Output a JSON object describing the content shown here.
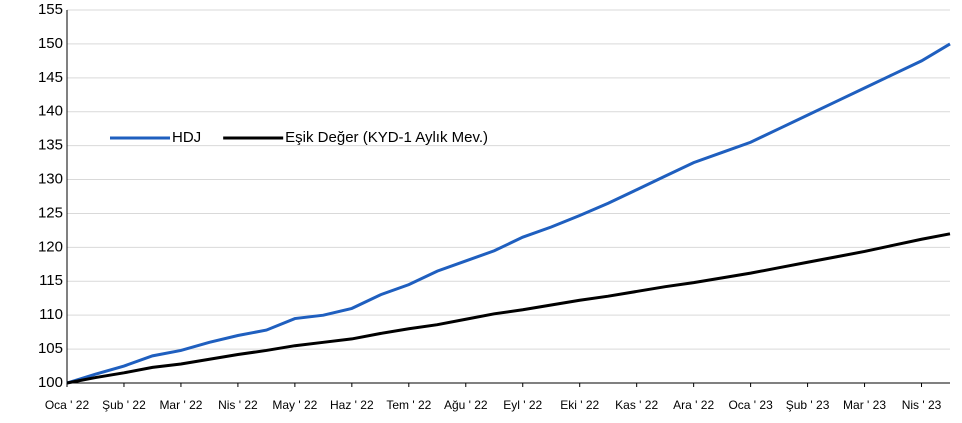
{
  "chart_data": {
    "type": "line",
    "categories": [
      "Oca ' 22",
      null,
      "Şub ' 22",
      null,
      "Mar ' 22",
      null,
      "Nis ' 22",
      null,
      "May ' 22",
      null,
      "Haz ' 22",
      null,
      "Tem ' 22",
      null,
      "Ağu ' 22",
      null,
      "Eyl ' 22",
      null,
      "Eki ' 22",
      null,
      "Kas ' 22",
      null,
      "Ara ' 22",
      null,
      "Oca ' 23",
      null,
      "Şub ' 23",
      null,
      "Mar ' 23",
      null,
      "Nis ' 23",
      null
    ],
    "series": [
      {
        "name": "HDJ",
        "color": "#1f5fbf",
        "values": [
          100,
          101.3,
          102.5,
          104,
          104.8,
          106,
          107,
          107.8,
          109.5,
          110,
          111,
          113,
          114.5,
          116.5,
          118,
          119.5,
          121.5,
          123,
          124.7,
          126.5,
          128.5,
          130.5,
          132.5,
          134,
          135.5,
          137.5,
          139.5,
          141.5,
          143.5,
          145.5,
          147.5,
          150
        ]
      },
      {
        "name": "Eşik Değer (KYD-1 Aylık Mev.)",
        "color": "#000000",
        "values": [
          100,
          100.8,
          101.5,
          102.3,
          102.8,
          103.5,
          104.2,
          104.8,
          105.5,
          106,
          106.5,
          107.3,
          108,
          108.6,
          109.4,
          110.2,
          110.8,
          111.5,
          112.2,
          112.8,
          113.5,
          114.2,
          114.8,
          115.5,
          116.2,
          117,
          117.8,
          118.6,
          119.4,
          120.3,
          121.2,
          122
        ]
      }
    ],
    "ylim": [
      100,
      155
    ],
    "yticks": [
      100,
      105,
      110,
      115,
      120,
      125,
      130,
      135,
      140,
      145,
      150,
      155
    ],
    "grid": true,
    "legend": "left"
  }
}
